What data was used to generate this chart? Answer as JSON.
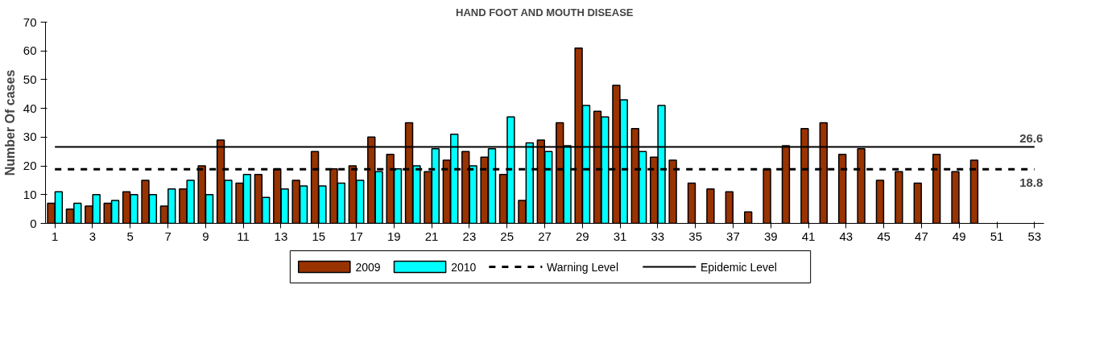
{
  "chart_data": {
    "type": "bar",
    "title": "HAND FOOT AND MOUTH DISEASE",
    "ylabel": "Number Of cases",
    "x": [
      1,
      2,
      3,
      4,
      5,
      6,
      7,
      8,
      9,
      10,
      11,
      12,
      13,
      14,
      15,
      16,
      17,
      18,
      19,
      20,
      21,
      22,
      23,
      24,
      25,
      26,
      27,
      28,
      29,
      30,
      31,
      32,
      33,
      34,
      35,
      36,
      37,
      38,
      39,
      40,
      41,
      42,
      43,
      44,
      45,
      46,
      47,
      48,
      49,
      50,
      51,
      52,
      53
    ],
    "series": [
      {
        "name": "2009",
        "color": "#993300",
        "values": [
          7,
          5,
          6,
          7,
          11,
          15,
          6,
          12,
          20,
          29,
          14,
          17,
          19,
          15,
          25,
          19,
          20,
          30,
          24,
          35,
          18,
          22,
          25,
          23,
          17,
          8,
          29,
          35,
          61,
          39,
          48,
          33,
          23,
          22,
          14,
          12,
          11,
          4,
          19,
          27,
          33,
          35,
          24,
          26,
          15,
          18,
          14,
          24,
          18,
          22,
          null,
          null,
          null
        ]
      },
      {
        "name": "2010",
        "color": "#00ffff",
        "values": [
          11,
          7,
          10,
          8,
          10,
          10,
          12,
          15,
          10,
          15,
          17,
          9,
          12,
          13,
          13,
          14,
          15,
          18,
          19,
          20,
          26,
          31,
          20,
          26,
          37,
          28,
          25,
          27,
          41,
          37,
          43,
          25,
          41,
          null,
          null,
          null,
          null,
          null,
          null,
          null,
          null,
          null,
          null,
          null,
          null,
          null,
          null,
          null,
          null,
          null,
          null,
          null,
          null
        ]
      },
      {
        "name": "Warning Level",
        "type": "line",
        "color": "#000000",
        "line_style": "dashed",
        "values": [
          18.8,
          18.8,
          18.8,
          18.8,
          18.8,
          18.8,
          18.8,
          18.8,
          18.8,
          18.8,
          18.8,
          18.8,
          18.8,
          18.8,
          18.8,
          18.8,
          18.8,
          18.8,
          18.8,
          18.8,
          18.8,
          18.8,
          18.8,
          18.8,
          18.8,
          18.8,
          18.8,
          18.8,
          18.8,
          18.8,
          18.8,
          18.8,
          18.8,
          18.8,
          18.8,
          18.8,
          18.8,
          18.8,
          18.8,
          18.8,
          18.8,
          18.8,
          18.8,
          18.8,
          18.8,
          18.8,
          18.8,
          18.8,
          18.8,
          18.8,
          18.8,
          18.8,
          18.8
        ]
      },
      {
        "name": "Epidemic Level",
        "type": "line",
        "color": "#000000",
        "line_style": "solid",
        "values": [
          26.6,
          26.6,
          26.6,
          26.6,
          26.6,
          26.6,
          26.6,
          26.6,
          26.6,
          26.6,
          26.6,
          26.6,
          26.6,
          26.6,
          26.6,
          26.6,
          26.6,
          26.6,
          26.6,
          26.6,
          26.6,
          26.6,
          26.6,
          26.6,
          26.6,
          26.6,
          26.6,
          26.6,
          26.6,
          26.6,
          26.6,
          26.6,
          26.6,
          26.6,
          26.6,
          26.6,
          26.6,
          26.6,
          26.6,
          26.6,
          26.6,
          26.6,
          26.6,
          26.6,
          26.6,
          26.6,
          26.6,
          26.6,
          26.6,
          26.6,
          26.6,
          26.6,
          26.6
        ]
      }
    ],
    "annotations": [
      {
        "text": "26.6",
        "x": 53,
        "y": 26.6
      },
      {
        "text": "18.8",
        "x": 53,
        "y": 18.8
      }
    ],
    "xlim": [
      0.5,
      53.5
    ],
    "xticks": [
      1,
      3,
      5,
      7,
      9,
      11,
      13,
      15,
      17,
      19,
      21,
      23,
      25,
      27,
      29,
      31,
      33,
      35,
      37,
      39,
      41,
      43,
      45,
      47,
      49,
      51,
      53
    ],
    "ylim": [
      0,
      70
    ],
    "yticks": [
      0,
      10,
      20,
      30,
      40,
      50,
      60,
      70
    ],
    "grid": false,
    "legend": "bottom"
  }
}
